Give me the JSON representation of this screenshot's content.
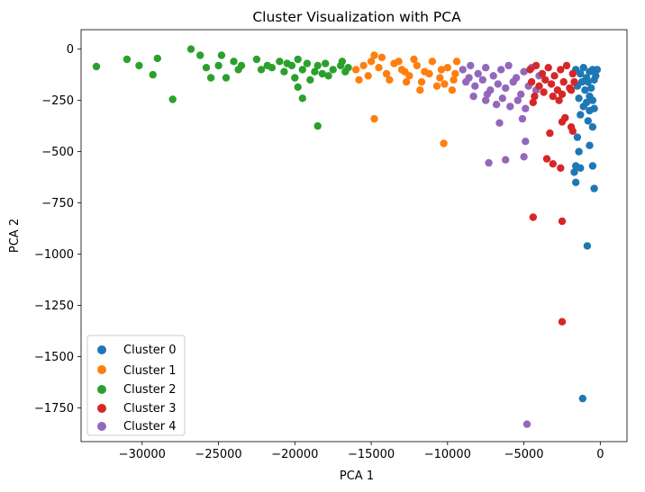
{
  "chart_data": {
    "type": "scatter",
    "title": "Cluster Visualization with PCA",
    "xlabel": "PCA 1",
    "ylabel": "PCA 2",
    "xlim": [
      -34000,
      1750
    ],
    "ylim": [
      -1915,
      95
    ],
    "xticks": [
      -30000,
      -25000,
      -20000,
      -15000,
      -10000,
      -5000,
      0
    ],
    "yticks": [
      0,
      -250,
      -500,
      -750,
      -1000,
      -1250,
      -1500,
      -1750
    ],
    "xtick_labels": [
      "−30000",
      "−25000",
      "−20000",
      "−15000",
      "−10000",
      "−5000",
      "0"
    ],
    "ytick_labels": [
      "0",
      "−250",
      "−500",
      "−750",
      "−1000",
      "−1250",
      "−1500",
      "−1750"
    ],
    "grid": false,
    "legend_position": "lower-left",
    "series": [
      {
        "name": "Cluster 0",
        "color": "#1f77b4",
        "points": [
          [
            -1600,
            -100
          ],
          [
            -1300,
            -120
          ],
          [
            -1100,
            -90
          ],
          [
            -900,
            -140
          ],
          [
            -700,
            -110
          ],
          [
            -500,
            -100
          ],
          [
            -300,
            -130
          ],
          [
            -200,
            -100
          ],
          [
            -1500,
            -180
          ],
          [
            -1000,
            -200
          ],
          [
            -800,
            -160
          ],
          [
            -600,
            -190
          ],
          [
            -400,
            -150
          ],
          [
            -1200,
            -160
          ],
          [
            -700,
            -230
          ],
          [
            -1400,
            -240
          ],
          [
            -900,
            -260
          ],
          [
            -500,
            -250
          ],
          [
            -1100,
            -280
          ],
          [
            -700,
            -300
          ],
          [
            -400,
            -290
          ],
          [
            -1300,
            -320
          ],
          [
            -800,
            -350
          ],
          [
            -500,
            -380
          ],
          [
            -1500,
            -430
          ],
          [
            -1400,
            -500
          ],
          [
            -700,
            -470
          ],
          [
            -1600,
            -570
          ],
          [
            -1300,
            -580
          ],
          [
            -1700,
            -600
          ],
          [
            -1600,
            -650
          ],
          [
            -500,
            -570
          ],
          [
            -400,
            -680
          ],
          [
            -850,
            -960
          ],
          [
            -1150,
            -1705
          ]
        ]
      },
      {
        "name": "Cluster 1",
        "color": "#ff7f0e",
        "points": [
          [
            -16000,
            -100
          ],
          [
            -15500,
            -80
          ],
          [
            -15000,
            -60
          ],
          [
            -14500,
            -90
          ],
          [
            -14000,
            -120
          ],
          [
            -13500,
            -70
          ],
          [
            -13000,
            -100
          ],
          [
            -12500,
            -130
          ],
          [
            -12000,
            -80
          ],
          [
            -11500,
            -110
          ],
          [
            -11000,
            -60
          ],
          [
            -10500,
            -140
          ],
          [
            -10000,
            -90
          ],
          [
            -9500,
            -120
          ],
          [
            -15800,
            -150
          ],
          [
            -15200,
            -130
          ],
          [
            -14300,
            -40
          ],
          [
            -13800,
            -150
          ],
          [
            -13200,
            -60
          ],
          [
            -12700,
            -160
          ],
          [
            -12200,
            -50
          ],
          [
            -11700,
            -160
          ],
          [
            -11200,
            -120
          ],
          [
            -10700,
            -180
          ],
          [
            -10200,
            -170
          ],
          [
            -9700,
            -200
          ],
          [
            -9400,
            -60
          ],
          [
            -14800,
            -30
          ],
          [
            -12800,
            -110
          ],
          [
            -11800,
            -200
          ],
          [
            -10400,
            -100
          ],
          [
            -9600,
            -150
          ],
          [
            -14800,
            -340
          ],
          [
            -10250,
            -460
          ]
        ]
      },
      {
        "name": "Cluster 2",
        "color": "#2ca02c",
        "points": [
          [
            -33000,
            -85
          ],
          [
            -31000,
            -50
          ],
          [
            -30200,
            -80
          ],
          [
            -29300,
            -125
          ],
          [
            -29000,
            -45
          ],
          [
            -28000,
            -245
          ],
          [
            -26800,
            0
          ],
          [
            -26200,
            -30
          ],
          [
            -25800,
            -90
          ],
          [
            -25500,
            -140
          ],
          [
            -25000,
            -80
          ],
          [
            -24800,
            -30
          ],
          [
            -24500,
            -140
          ],
          [
            -24000,
            -60
          ],
          [
            -23700,
            -100
          ],
          [
            -23500,
            -80
          ],
          [
            -22500,
            -50
          ],
          [
            -22200,
            -100
          ],
          [
            -21800,
            -80
          ],
          [
            -21500,
            -90
          ],
          [
            -21000,
            -60
          ],
          [
            -20700,
            -110
          ],
          [
            -20200,
            -80
          ],
          [
            -20000,
            -140
          ],
          [
            -19800,
            -50
          ],
          [
            -19500,
            -100
          ],
          [
            -19200,
            -70
          ],
          [
            -19000,
            -150
          ],
          [
            -18700,
            -110
          ],
          [
            -18500,
            -80
          ],
          [
            -18200,
            -120
          ],
          [
            -18000,
            -70
          ],
          [
            -17500,
            -100
          ],
          [
            -17000,
            -80
          ],
          [
            -16700,
            -110
          ],
          [
            -16500,
            -90
          ],
          [
            -19800,
            -185
          ],
          [
            -19500,
            -240
          ],
          [
            -18500,
            -375
          ],
          [
            -20500,
            -70
          ],
          [
            -17800,
            -130
          ],
          [
            -16900,
            -60
          ]
        ]
      },
      {
        "name": "Cluster 4",
        "color": "#9467bd",
        "points": [
          [
            -9000,
            -100
          ],
          [
            -8500,
            -80
          ],
          [
            -8000,
            -120
          ],
          [
            -7500,
            -90
          ],
          [
            -7000,
            -130
          ],
          [
            -6500,
            -100
          ],
          [
            -6000,
            -80
          ],
          [
            -5500,
            -140
          ],
          [
            -5000,
            -110
          ],
          [
            -4500,
            -90
          ],
          [
            -4000,
            -130
          ],
          [
            -8800,
            -160
          ],
          [
            -8200,
            -180
          ],
          [
            -7700,
            -150
          ],
          [
            -7200,
            -200
          ],
          [
            -6700,
            -170
          ],
          [
            -6200,
            -190
          ],
          [
            -5700,
            -160
          ],
          [
            -5200,
            -220
          ],
          [
            -4700,
            -180
          ],
          [
            -4200,
            -200
          ],
          [
            -8600,
            -140
          ],
          [
            -7400,
            -220
          ],
          [
            -6400,
            -240
          ],
          [
            -5400,
            -250
          ],
          [
            -6800,
            -270
          ],
          [
            -5900,
            -280
          ],
          [
            -4900,
            -290
          ],
          [
            -8300,
            -230
          ],
          [
            -7500,
            -250
          ],
          [
            -6600,
            -360
          ],
          [
            -5100,
            -340
          ],
          [
            -4900,
            -450
          ],
          [
            -6200,
            -540
          ],
          [
            -7300,
            -555
          ],
          [
            -5000,
            -525
          ],
          [
            -4800,
            -1830
          ]
        ]
      },
      {
        "name": "Cluster 3",
        "color": "#d62728",
        "points": [
          [
            -4600,
            -100
          ],
          [
            -4200,
            -80
          ],
          [
            -3800,
            -120
          ],
          [
            -3400,
            -90
          ],
          [
            -3000,
            -130
          ],
          [
            -2600,
            -100
          ],
          [
            -2200,
            -80
          ],
          [
            -1800,
            -120
          ],
          [
            -4500,
            -160
          ],
          [
            -4000,
            -180
          ],
          [
            -3600,
            -150
          ],
          [
            -3200,
            -170
          ],
          [
            -2800,
            -200
          ],
          [
            -2400,
            -160
          ],
          [
            -2000,
            -190
          ],
          [
            -1700,
            -160
          ],
          [
            -4300,
            -230
          ],
          [
            -3700,
            -210
          ],
          [
            -3100,
            -230
          ],
          [
            -2500,
            -220
          ],
          [
            -1900,
            -200
          ],
          [
            -4400,
            -260
          ],
          [
            -2700,
            -250
          ],
          [
            -2500,
            -355
          ],
          [
            -2300,
            -335
          ],
          [
            -1900,
            -380
          ],
          [
            -1800,
            -400
          ],
          [
            -3300,
            -410
          ],
          [
            -3500,
            -535
          ],
          [
            -3100,
            -560
          ],
          [
            -2600,
            -580
          ],
          [
            -4400,
            -820
          ],
          [
            -2500,
            -840
          ],
          [
            -2500,
            -1330
          ]
        ]
      }
    ]
  },
  "legend": {
    "items": [
      {
        "label": "Cluster 0",
        "color": "#1f77b4"
      },
      {
        "label": "Cluster 1",
        "color": "#ff7f0e"
      },
      {
        "label": "Cluster 2",
        "color": "#2ca02c"
      },
      {
        "label": "Cluster 3",
        "color": "#d62728"
      },
      {
        "label": "Cluster 4",
        "color": "#9467bd"
      }
    ]
  }
}
